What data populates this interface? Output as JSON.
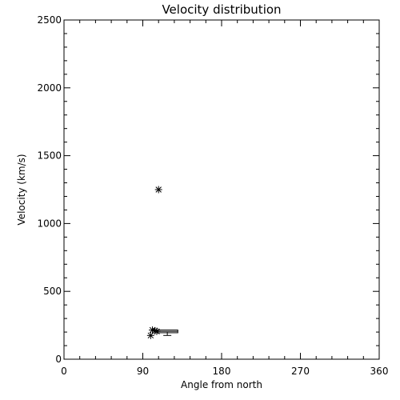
{
  "chart_data": {
    "type": "scatter",
    "title": "Velocity distribution",
    "xlabel": "Angle from north",
    "ylabel": "Velocity (km/s)",
    "xlim": [
      0,
      360
    ],
    "ylim": [
      0,
      2500
    ],
    "xticks": [
      0,
      90,
      180,
      270,
      360
    ],
    "yticks": [
      0,
      500,
      1000,
      1500,
      2000,
      2500
    ],
    "grid": false,
    "legend": "none",
    "points": [
      {
        "x": 108,
        "y": 1250
      },
      {
        "x": 101,
        "y": 215
      },
      {
        "x": 104,
        "y": 210
      },
      {
        "x": 106,
        "y": 205
      },
      {
        "x": 99,
        "y": 175
      }
    ],
    "box": {
      "x_start": 107,
      "x_end": 130,
      "y_low": 195,
      "y_high": 215
    },
    "error_bar": {
      "x": 118,
      "y_center": 195,
      "y_low": 175,
      "y_high": 200
    },
    "colors": {
      "foreground": "#000000",
      "background": "#ffffff"
    }
  }
}
